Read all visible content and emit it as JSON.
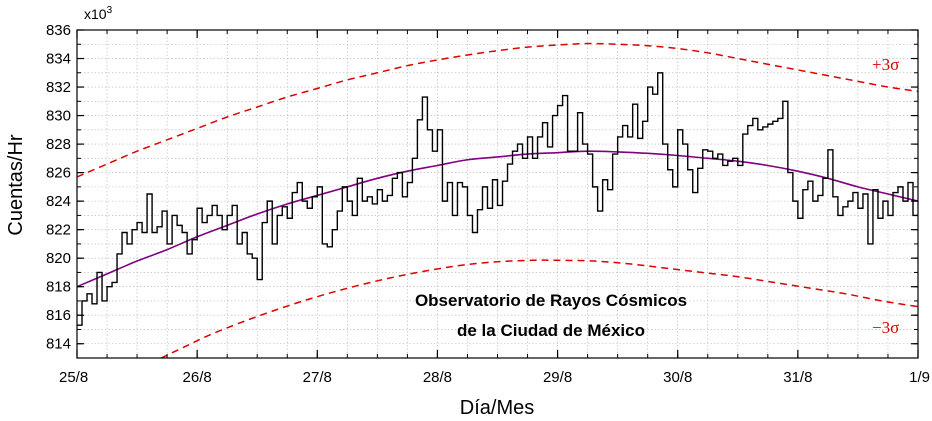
{
  "chart_data": {
    "type": "line",
    "xlabel": "Día/Mes",
    "ylabel": "Cuentas/Hr",
    "y_multiplier_label": "x10",
    "y_multiplier_exp": "3",
    "xlim": [
      0,
      7
    ],
    "ylim": [
      813,
      836
    ],
    "x_ticks": [
      {
        "x": 0,
        "label": "25/8"
      },
      {
        "x": 1,
        "label": "26/8"
      },
      {
        "x": 2,
        "label": "27/8"
      },
      {
        "x": 3,
        "label": "28/8"
      },
      {
        "x": 4,
        "label": "29/8"
      },
      {
        "x": 5,
        "label": "30/8"
      },
      {
        "x": 6,
        "label": "31/8"
      },
      {
        "x": 7,
        "label": "1/9"
      }
    ],
    "y_ticks": [
      814,
      816,
      818,
      820,
      822,
      824,
      826,
      828,
      830,
      832,
      834,
      836
    ],
    "grid": true,
    "annotations": {
      "plus_sigma": "+3σ",
      "minus_sigma": "−3σ",
      "note_line1": "Observatorio de Rayos Cósmicos",
      "note_line2": "de la Ciudad de México"
    },
    "colors": {
      "counts": "#000000",
      "fit": "#800080",
      "sigma": "#dd0000",
      "grid": "#b4b4b4"
    },
    "series": [
      {
        "kind": "step",
        "color": "#000000",
        "dx": 0.041667,
        "y": [
          815.3,
          817.0,
          817.5,
          816.8,
          819.0,
          817.0,
          818.0,
          818.3,
          820.3,
          821.8,
          821.0,
          822.0,
          822.5,
          821.8,
          824.5,
          821.8,
          822.2,
          823.3,
          821.0,
          823.0,
          822.3,
          821.8,
          820.3,
          821.3,
          823.5,
          822.5,
          823.0,
          823.7,
          823.0,
          822.0,
          823.0,
          823.7,
          821.0,
          821.8,
          820.3,
          820.0,
          818.5,
          822.5,
          824.0,
          821.0,
          823.0,
          823.6,
          822.8,
          824.6,
          825.3,
          824.0,
          823.5,
          824.3,
          825.0,
          821.0,
          820.8,
          822.0,
          823.3,
          825.0,
          824.0,
          823.0,
          825.6,
          824.0,
          824.3,
          823.8,
          824.8,
          824.0,
          824.4,
          825.6,
          826.0,
          824.3,
          825.3,
          827.0,
          829.7,
          831.3,
          829.0,
          827.5,
          829.0,
          824.0,
          825.3,
          823.0,
          825.3,
          825.0,
          823.0,
          821.8,
          823.4,
          825.0,
          823.5,
          825.5,
          823.7,
          825.4,
          826.6,
          827.5,
          828.0,
          827.0,
          828.5,
          827.0,
          828.5,
          829.5,
          827.8,
          830.0,
          830.7,
          831.4,
          827.5,
          827.5,
          830.2,
          828.0,
          827.3,
          825.0,
          823.3,
          825.5,
          824.8,
          827.3,
          828.5,
          829.3,
          828.5,
          830.8,
          828.4,
          829.6,
          832.0,
          831.5,
          833.0,
          828.0,
          826.2,
          825.0,
          829.0,
          828.0,
          826.2,
          824.6,
          826.3,
          827.6,
          827.5,
          827.0,
          827.3,
          826.5,
          826.8,
          827.0,
          826.5,
          828.7,
          829.3,
          829.8,
          829.0,
          829.2,
          829.4,
          829.6,
          829.8,
          831.0,
          826.0,
          824.0,
          822.8,
          824.8,
          825.4,
          824.0,
          824.4,
          825.6,
          827.6,
          824.3,
          823.0,
          823.6,
          824.0,
          824.6,
          823.5,
          824.5,
          821.0,
          824.8,
          822.8,
          824.0,
          823.0,
          824.6,
          825.0,
          824.0,
          825.3,
          823.0
        ]
      },
      {
        "kind": "fit",
        "color": "#800080",
        "x": [
          0,
          0.25,
          0.5,
          0.75,
          1,
          1.25,
          1.5,
          1.75,
          2,
          2.25,
          2.5,
          2.75,
          3,
          3.25,
          3.5,
          3.75,
          4,
          4.25,
          4.5,
          4.75,
          5,
          5.25,
          5.5,
          5.75,
          6,
          6.25,
          6.5,
          6.75,
          7
        ],
        "y": [
          818.0,
          818.9,
          819.8,
          820.6,
          821.5,
          822.3,
          823.1,
          823.8,
          824.4,
          825.0,
          825.6,
          826.1,
          826.5,
          826.9,
          827.1,
          827.3,
          827.4,
          827.5,
          827.45,
          827.35,
          827.2,
          827.0,
          826.8,
          826.5,
          826.1,
          825.6,
          825.0,
          824.5,
          824.0
        ]
      },
      {
        "kind": "dashed",
        "color": "#dd0000",
        "x": [
          0,
          0.25,
          0.5,
          0.75,
          1,
          1.25,
          1.5,
          1.75,
          2,
          2.25,
          2.5,
          2.75,
          3,
          3.25,
          3.5,
          3.75,
          4,
          4.25,
          4.5,
          4.75,
          5,
          5.25,
          5.5,
          5.75,
          6,
          6.25,
          6.5,
          6.75,
          7
        ],
        "y": [
          825.7,
          826.6,
          827.5,
          828.3,
          829.1,
          829.9,
          830.6,
          831.3,
          831.9,
          832.5,
          833.0,
          833.5,
          833.9,
          834.25,
          834.55,
          834.8,
          834.95,
          835.05,
          835.0,
          834.9,
          834.7,
          834.4,
          834.0,
          833.6,
          833.2,
          832.8,
          832.4,
          832.0,
          831.7
        ]
      },
      {
        "kind": "dashed",
        "color": "#dd0000",
        "x": [
          0.7,
          0.9,
          1.1,
          1.4,
          1.7,
          2,
          2.3,
          2.6,
          2.9,
          3.2,
          3.5,
          3.8,
          4,
          4.3,
          4.6,
          4.9,
          5.2,
          5.5,
          5.8,
          6.1,
          6.4,
          6.7,
          7
        ],
        "y": [
          813.0,
          813.8,
          814.6,
          815.6,
          816.5,
          817.3,
          818.0,
          818.6,
          819.1,
          819.5,
          819.75,
          819.85,
          819.85,
          819.8,
          819.6,
          819.3,
          819.0,
          818.7,
          818.3,
          817.9,
          817.5,
          817.0,
          816.6
        ]
      }
    ]
  }
}
